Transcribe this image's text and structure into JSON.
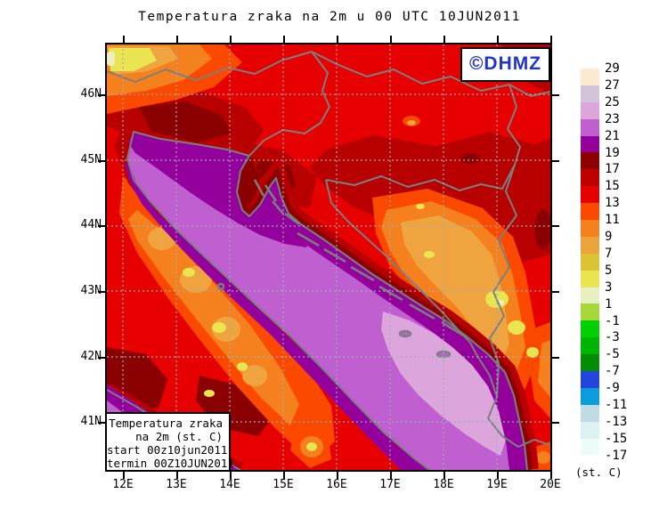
{
  "title": "Temperatura zraka na 2m u 00 UTC 10JUN2011",
  "logo": {
    "text": "©DHMZ",
    "color": "#2233cc"
  },
  "legend": {
    "unit_label": "(st. C)",
    "levels": [
      "29",
      "27",
      "25",
      "23",
      "21",
      "19",
      "17",
      "15",
      "13",
      "11",
      "9",
      "7",
      "5",
      "3",
      "1",
      "-1",
      "-3",
      "-5",
      "-7",
      "-9",
      "-11",
      "-13",
      "-15",
      "-17"
    ],
    "colors": [
      "#FCE9D1",
      "#D2C5DA",
      "#DCA6DC",
      "#C05FD0",
      "#94009C",
      "#8B0000",
      "#BE0000",
      "#E60000",
      "#FB4A00",
      "#F4801E",
      "#EBA33C",
      "#DCC335",
      "#E9E44F",
      "#E8EFC2",
      "#A5D838",
      "#00D005",
      "#00B404",
      "#048D04",
      "#2345DE",
      "#0C9CDB",
      "#BFDCE4",
      "#DCF1F1",
      "#EEFBFB"
    ]
  },
  "axes": {
    "lat_labels": [
      "46N",
      "45N",
      "44N",
      "43N",
      "42N",
      "41N"
    ],
    "lon_labels": [
      "12E",
      "13E",
      "14E",
      "15E",
      "16E",
      "17E",
      "18E",
      "19E",
      "20E"
    ]
  },
  "info_box": {
    "lines": [
      "Temperatura zraka",
      "na 2m (st. C)",
      "start 00z10jun2011",
      "termin 00Z10JUN2011"
    ]
  }
}
